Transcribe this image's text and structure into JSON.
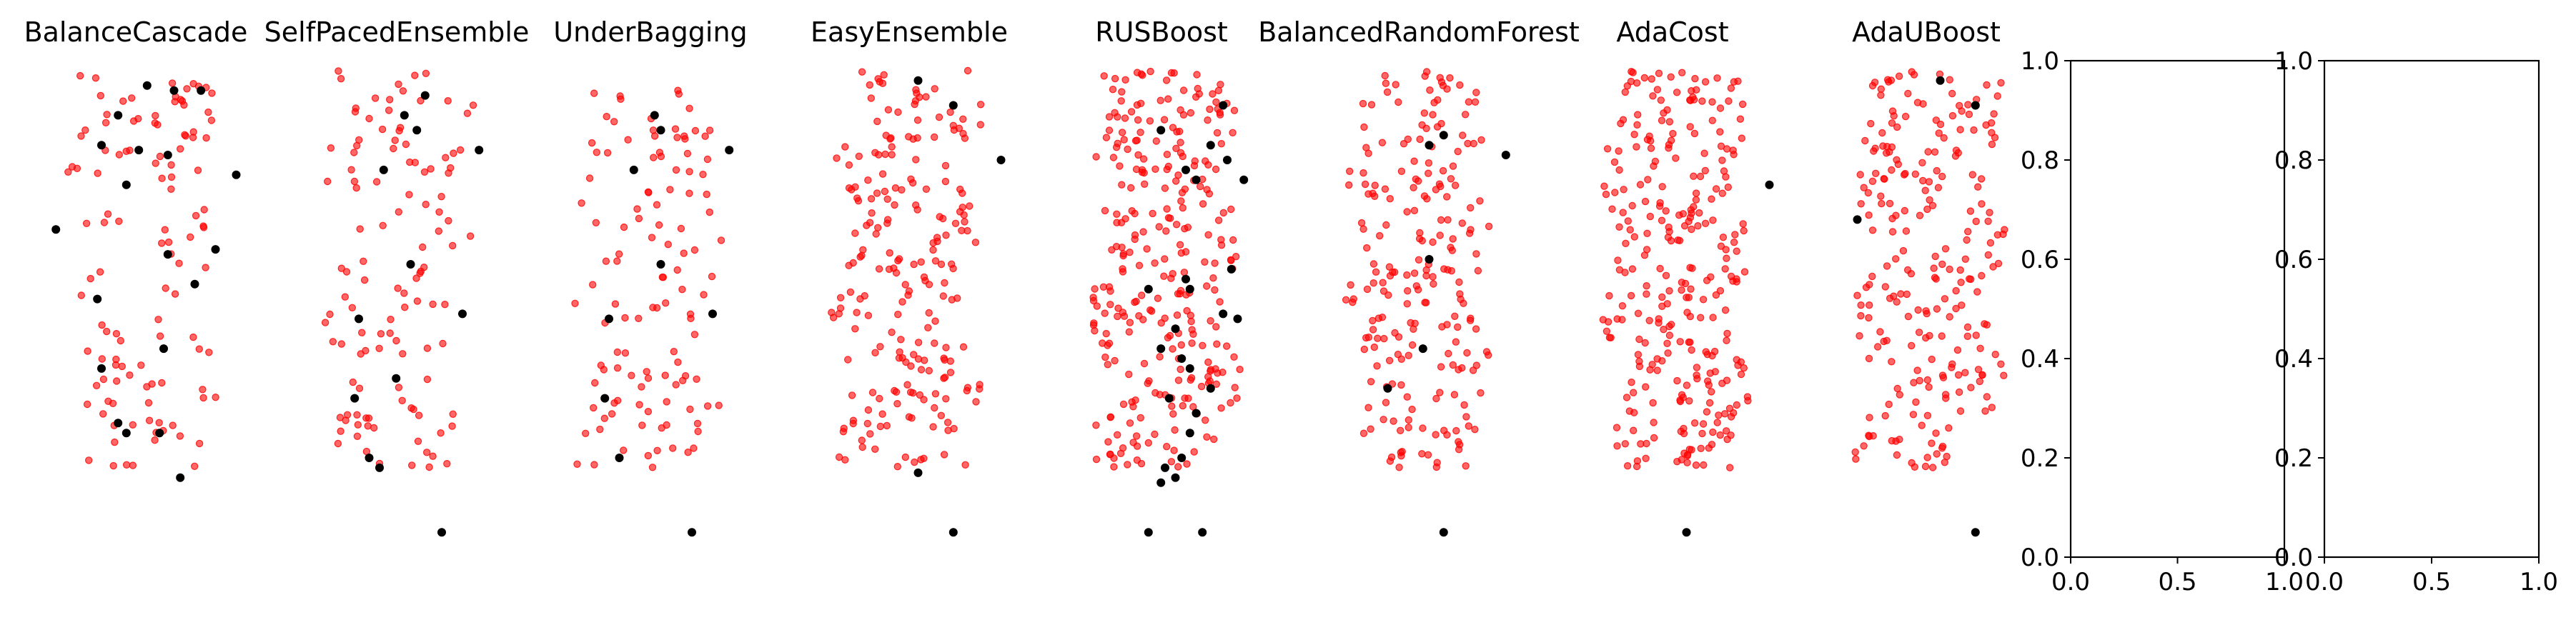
{
  "figure": {
    "colors": {
      "minority": "#000000",
      "majority": "#ff0000",
      "axis": "#000000"
    }
  },
  "chart_data": [
    {
      "type": "scatter",
      "title": "BalanceCascade",
      "axis_visible": false,
      "density": "sparse",
      "majority_color": "#ff0000",
      "minority_color": "#000000",
      "minority_points": [
        [
          0.52,
          0.95
        ],
        [
          0.65,
          0.94
        ],
        [
          0.78,
          0.94
        ],
        [
          0.38,
          0.89
        ],
        [
          0.3,
          0.83
        ],
        [
          0.48,
          0.82
        ],
        [
          0.62,
          0.81
        ],
        [
          0.95,
          0.77
        ],
        [
          0.42,
          0.75
        ],
        [
          0.08,
          0.66
        ],
        [
          0.85,
          0.62
        ],
        [
          0.62,
          0.61
        ],
        [
          0.75,
          0.55
        ],
        [
          0.28,
          0.52
        ],
        [
          0.6,
          0.42
        ],
        [
          0.3,
          0.38
        ],
        [
          0.38,
          0.27
        ],
        [
          0.42,
          0.25
        ],
        [
          0.58,
          0.25
        ],
        [
          0.68,
          0.16
        ]
      ]
    },
    {
      "type": "scatter",
      "title": "SelfPacedEnsemble",
      "axis_visible": false,
      "density": "sparse",
      "majority_color": "#ff0000",
      "minority_color": "#000000",
      "minority_points": [
        [
          0.62,
          0.93
        ],
        [
          0.52,
          0.89
        ],
        [
          0.58,
          0.86
        ],
        [
          0.88,
          0.82
        ],
        [
          0.42,
          0.78
        ],
        [
          0.55,
          0.59
        ],
        [
          0.8,
          0.49
        ],
        [
          0.3,
          0.48
        ],
        [
          0.48,
          0.36
        ],
        [
          0.28,
          0.32
        ],
        [
          0.35,
          0.2
        ],
        [
          0.4,
          0.18
        ],
        [
          0.7,
          0.05
        ]
      ]
    },
    {
      "type": "scatter",
      "title": "UnderBagging",
      "axis_visible": false,
      "density": "sparse",
      "majority_color": "#ff0000",
      "minority_color": "#000000",
      "minority_points": [
        [
          0.52,
          0.89
        ],
        [
          0.55,
          0.86
        ],
        [
          0.88,
          0.82
        ],
        [
          0.42,
          0.78
        ],
        [
          0.55,
          0.59
        ],
        [
          0.8,
          0.49
        ],
        [
          0.3,
          0.48
        ],
        [
          0.28,
          0.32
        ],
        [
          0.35,
          0.2
        ],
        [
          0.7,
          0.05
        ]
      ]
    },
    {
      "type": "scatter",
      "title": "EasyEnsemble",
      "axis_visible": false,
      "density": "medium",
      "majority_color": "#ff0000",
      "minority_color": "#000000",
      "minority_points": [
        [
          0.55,
          0.96
        ],
        [
          0.72,
          0.91
        ],
        [
          0.95,
          0.8
        ],
        [
          0.55,
          0.17
        ],
        [
          0.72,
          0.05
        ]
      ]
    },
    {
      "type": "scatter",
      "title": "RUSBoost",
      "axis_visible": false,
      "density": "dense",
      "majority_color": "#ff0000",
      "minority_color": "#000000",
      "minority_points": [
        [
          0.78,
          0.91
        ],
        [
          0.48,
          0.86
        ],
        [
          0.72,
          0.83
        ],
        [
          0.8,
          0.8
        ],
        [
          0.6,
          0.78
        ],
        [
          0.65,
          0.76
        ],
        [
          0.88,
          0.76
        ],
        [
          0.82,
          0.58
        ],
        [
          0.6,
          0.56
        ],
        [
          0.42,
          0.54
        ],
        [
          0.62,
          0.54
        ],
        [
          0.78,
          0.49
        ],
        [
          0.85,
          0.48
        ],
        [
          0.55,
          0.46
        ],
        [
          0.48,
          0.42
        ],
        [
          0.58,
          0.4
        ],
        [
          0.62,
          0.38
        ],
        [
          0.72,
          0.34
        ],
        [
          0.52,
          0.32
        ],
        [
          0.65,
          0.29
        ],
        [
          0.62,
          0.25
        ],
        [
          0.58,
          0.2
        ],
        [
          0.5,
          0.18
        ],
        [
          0.55,
          0.16
        ],
        [
          0.48,
          0.15
        ],
        [
          0.42,
          0.05
        ],
        [
          0.68,
          0.05
        ]
      ]
    },
    {
      "type": "scatter",
      "title": "BalancedRandomForest",
      "axis_visible": false,
      "density": "medium",
      "majority_color": "#ff0000",
      "minority_color": "#000000",
      "minority_points": [
        [
          0.62,
          0.85
        ],
        [
          0.55,
          0.83
        ],
        [
          0.92,
          0.81
        ],
        [
          0.55,
          0.6
        ],
        [
          0.52,
          0.42
        ],
        [
          0.35,
          0.34
        ],
        [
          0.62,
          0.05
        ]
      ]
    },
    {
      "type": "scatter",
      "title": "AdaCost",
      "axis_visible": false,
      "density": "dense",
      "majority_color": "#ff0000",
      "minority_color": "#000000",
      "minority_points": [
        [
          0.95,
          0.75
        ],
        [
          0.55,
          0.05
        ]
      ]
    },
    {
      "type": "scatter",
      "title": "AdaUBoost",
      "axis_visible": false,
      "density": "dense_clipped",
      "majority_color": "#ff0000",
      "minority_color": "#000000",
      "minority_points": [
        [
          0.55,
          0.96
        ],
        [
          0.72,
          0.91
        ],
        [
          0.15,
          0.68
        ],
        [
          0.72,
          0.05
        ]
      ]
    },
    {
      "type": "scatter",
      "title": "",
      "axis_visible": true,
      "empty": true,
      "xlim": [
        0.0,
        1.0
      ],
      "ylim": [
        0.0,
        1.0
      ],
      "xticks": [
        "0.0",
        "0.5",
        "1.0"
      ],
      "yticks": [
        "0.0",
        "0.2",
        "0.4",
        "0.6",
        "0.8",
        "1.0"
      ]
    },
    {
      "type": "scatter",
      "title": "",
      "axis_visible": true,
      "empty": true,
      "xlim": [
        0.0,
        1.0
      ],
      "ylim": [
        0.0,
        1.0
      ],
      "xticks": [
        "0.0",
        "0.5",
        "1.0"
      ],
      "yticks": [
        "0.0",
        "0.2",
        "0.4",
        "0.6",
        "0.8",
        "1.0"
      ]
    }
  ]
}
